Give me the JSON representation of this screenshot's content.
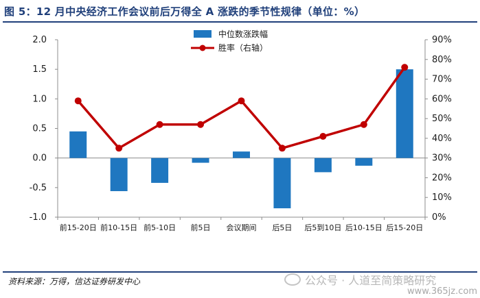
{
  "title": "图 5：12 月中央经济工作会议前后万得全 A 涨跌的季节性规律（单位：%）",
  "source": "资料来源：万得，信达证券研发中心",
  "watermark": "公众号 · 人道至简策略研究",
  "watermark_url": "www.365jz.com",
  "colors": {
    "bar": "#1f77c0",
    "line": "#c00000",
    "title": "#1f3f7a"
  },
  "chart_data": {
    "type": "bar",
    "categories": [
      "前15-20日",
      "前10-15日",
      "前5-10日",
      "前5日",
      "会议期间",
      "后5日",
      "后5到10日",
      "后10-15日",
      "后15-20日"
    ],
    "series": [
      {
        "name": "中位数涨跌幅",
        "type": "bar",
        "axis": "left",
        "values": [
          0.45,
          -0.56,
          -0.42,
          -0.08,
          0.11,
          -0.85,
          -0.24,
          -0.13,
          1.5
        ]
      },
      {
        "name": "胜率（右轴）",
        "type": "line",
        "axis": "right",
        "values": [
          59,
          35,
          47,
          47,
          59,
          35,
          41,
          47,
          76
        ]
      }
    ],
    "left_axis": {
      "ylim": [
        -1.0,
        2.0
      ],
      "ticks": [
        "-1.0",
        "-0.5",
        "0.0",
        "0.5",
        "1.0",
        "1.5",
        "2.0"
      ]
    },
    "right_axis": {
      "ylim": [
        0,
        90
      ],
      "ticks": [
        "0%",
        "10%",
        "20%",
        "30%",
        "40%",
        "50%",
        "60%",
        "70%",
        "80%",
        "90%"
      ]
    },
    "legend_position": "top-center",
    "grid": false
  }
}
